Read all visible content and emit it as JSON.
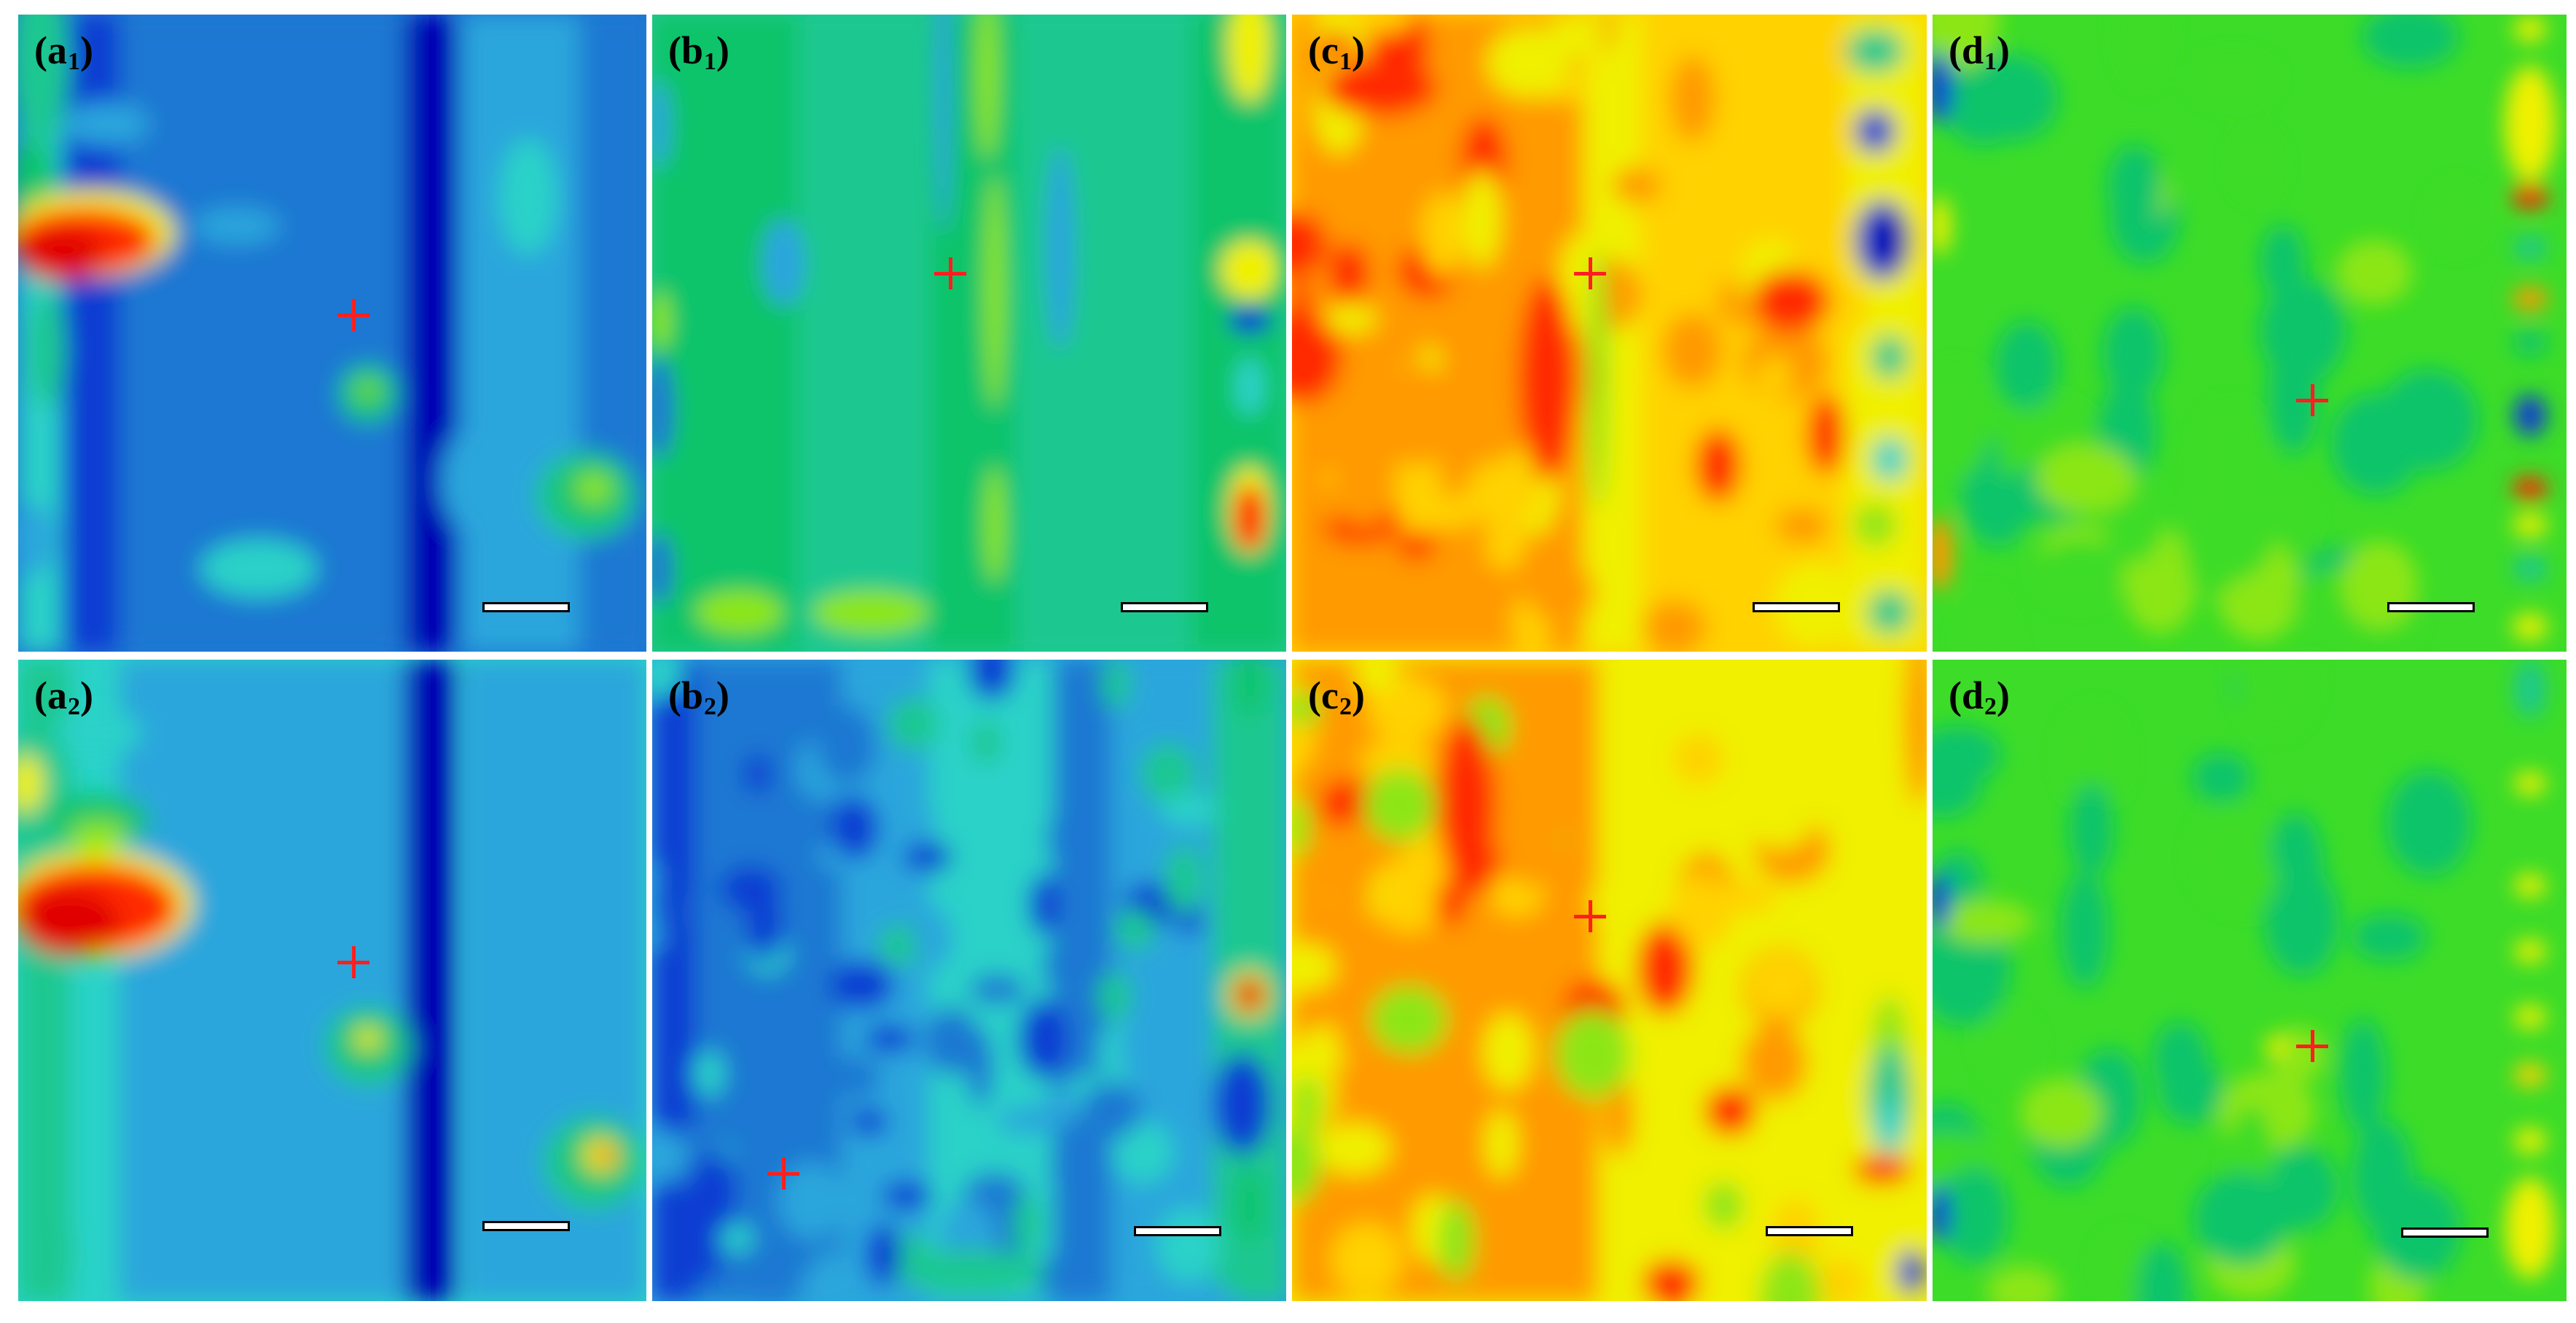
{
  "figure": {
    "panels": [
      {
        "id": "a1",
        "letter": "a",
        "sub": "1",
        "palette": "coldA",
        "marker": true
      },
      {
        "id": "b1",
        "letter": "b",
        "sub": "1",
        "palette": "midB1",
        "marker": true
      },
      {
        "id": "c1",
        "letter": "c",
        "sub": "1",
        "palette": "hotC",
        "marker": true
      },
      {
        "id": "d1",
        "letter": "d",
        "sub": "1",
        "palette": "greenD",
        "marker": true
      },
      {
        "id": "a2",
        "letter": "a",
        "sub": "2",
        "palette": "coldA2",
        "marker": true
      },
      {
        "id": "b2",
        "letter": "b",
        "sub": "2",
        "palette": "coldB2",
        "marker": true
      },
      {
        "id": "c2",
        "letter": "c",
        "sub": "2",
        "palette": "hotC2",
        "marker": true
      },
      {
        "id": "d2",
        "letter": "d",
        "sub": "2",
        "palette": "greenD",
        "marker": true
      }
    ],
    "colors": {
      "marker": "#ff1f1f",
      "scalebar_fill": "#ffffff",
      "scalebar_border": "#000000",
      "colormap": [
        "#0000b4",
        "#0a3cd2",
        "#1e8cd2",
        "#2ad2c8",
        "#11c46a",
        "#5ce31a",
        "#d8f00a",
        "#ffe600",
        "#ff9a00",
        "#ff2a00",
        "#e80000"
      ]
    }
  }
}
